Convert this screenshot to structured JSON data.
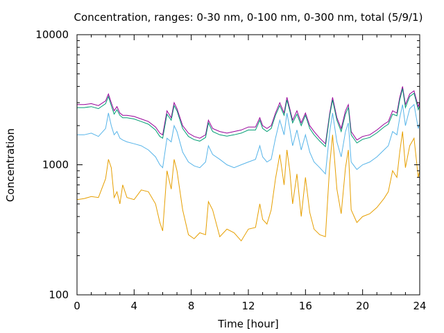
{
  "chart_data": {
    "type": "line",
    "title": "Concentration, ranges: 0-30 nm, 0-100 nm, 0-300 nm, total (5/9/1)",
    "xlabel": "Time [hour]",
    "ylabel": "Concentration",
    "xlim": [
      0,
      24
    ],
    "ylim": [
      100,
      10000
    ],
    "yscale": "log",
    "grid": false,
    "legend": "none",
    "x_ticks": [
      "0",
      "4",
      "8",
      "12",
      "16",
      "20",
      "24"
    ],
    "y_ticks": [
      "100",
      "1000",
      "10000"
    ],
    "x": [
      0.0,
      0.5,
      1.0,
      1.5,
      2.0,
      2.2,
      2.4,
      2.6,
      2.8,
      3.0,
      3.2,
      3.5,
      4.0,
      4.5,
      5.0,
      5.5,
      5.8,
      6.0,
      6.3,
      6.6,
      6.8,
      7.0,
      7.4,
      7.8,
      8.2,
      8.6,
      9.0,
      9.2,
      9.5,
      10.0,
      10.5,
      11.0,
      11.5,
      12.0,
      12.5,
      12.8,
      13.0,
      13.3,
      13.6,
      13.9,
      14.2,
      14.5,
      14.7,
      14.9,
      15.1,
      15.4,
      15.7,
      16.0,
      16.3,
      16.6,
      17.0,
      17.4,
      17.7,
      17.9,
      18.2,
      18.5,
      18.8,
      19.0,
      19.2,
      19.6,
      20.0,
      20.5,
      21.0,
      21.5,
      21.8,
      22.1,
      22.4,
      22.6,
      22.8,
      23.0,
      23.3,
      23.6,
      23.9,
      24.0
    ],
    "series": [
      {
        "color": "#990099",
        "values": [
          2900,
          2900,
          2950,
          2850,
          3100,
          3500,
          3000,
          2600,
          2800,
          2500,
          2400,
          2400,
          2350,
          2250,
          2150,
          1950,
          1750,
          1700,
          2600,
          2300,
          3000,
          2700,
          2000,
          1750,
          1650,
          1600,
          1700,
          2200,
          1900,
          1800,
          1750,
          1800,
          1850,
          1950,
          1950,
          2300,
          2000,
          1900,
          2000,
          2500,
          3000,
          2500,
          3300,
          2700,
          2200,
          2600,
          2100,
          2500,
          2000,
          1800,
          1600,
          1450,
          2500,
          3300,
          2300,
          1900,
          2600,
          2900,
          1800,
          1550,
          1650,
          1700,
          1850,
          2050,
          2150,
          2600,
          2500,
          3300,
          4000,
          2900,
          3500,
          3700,
          2800,
          3000
        ]
      },
      {
        "color": "#009e73",
        "values": [
          2750,
          2750,
          2800,
          2700,
          2950,
          3350,
          2850,
          2450,
          2650,
          2400,
          2300,
          2300,
          2250,
          2150,
          2050,
          1850,
          1650,
          1600,
          2450,
          2200,
          2850,
          2600,
          1900,
          1650,
          1560,
          1520,
          1620,
          2100,
          1800,
          1700,
          1660,
          1700,
          1750,
          1850,
          1850,
          2200,
          1900,
          1800,
          1900,
          2400,
          2850,
          2400,
          3150,
          2600,
          2100,
          2450,
          2000,
          2400,
          1900,
          1700,
          1520,
          1380,
          2400,
          3150,
          2200,
          1800,
          2450,
          2750,
          1700,
          1470,
          1570,
          1620,
          1760,
          1950,
          2050,
          2450,
          2380,
          3150,
          3850,
          2750,
          3350,
          3550,
          2650,
          2850
        ]
      },
      {
        "color": "#56b4e9",
        "values": [
          1700,
          1700,
          1750,
          1650,
          1900,
          2500,
          2000,
          1700,
          1800,
          1600,
          1550,
          1500,
          1450,
          1400,
          1300,
          1150,
          1000,
          950,
          1600,
          1500,
          2000,
          1800,
          1250,
          1050,
          980,
          950,
          1050,
          1400,
          1200,
          1100,
          1000,
          950,
          1000,
          1050,
          1100,
          1400,
          1150,
          1050,
          1100,
          1600,
          2200,
          1700,
          2500,
          1900,
          1400,
          1850,
          1300,
          1700,
          1250,
          1050,
          950,
          850,
          1800,
          2500,
          1500,
          1150,
          1800,
          2100,
          1050,
          920,
          1000,
          1050,
          1150,
          1300,
          1400,
          1800,
          1700,
          2300,
          2900,
          2000,
          2700,
          2900,
          1900,
          2100
        ]
      },
      {
        "color": "#e69f00",
        "values": [
          540,
          550,
          570,
          560,
          780,
          1100,
          950,
          560,
          620,
          500,
          700,
          560,
          540,
          640,
          620,
          500,
          360,
          310,
          900,
          650,
          1100,
          900,
          450,
          290,
          270,
          300,
          290,
          520,
          450,
          280,
          320,
          300,
          260,
          320,
          330,
          500,
          380,
          350,
          450,
          780,
          1200,
          700,
          1300,
          900,
          500,
          850,
          400,
          800,
          430,
          320,
          290,
          280,
          1000,
          1700,
          650,
          420,
          950,
          1300,
          450,
          360,
          400,
          420,
          470,
          550,
          620,
          900,
          800,
          1250,
          1800,
          950,
          1400,
          1600,
          800,
          900
        ]
      }
    ]
  }
}
